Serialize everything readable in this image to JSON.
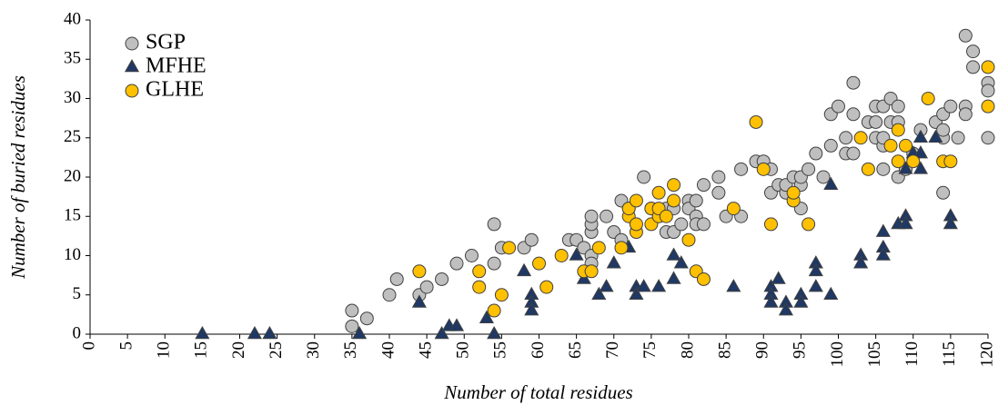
{
  "chart_data": {
    "type": "scatter",
    "x_label": "Number of total residues",
    "y_label": "Number of buried residues",
    "xlim": [
      0,
      120
    ],
    "ylim": [
      0,
      40
    ],
    "xticks": [
      0,
      5,
      10,
      15,
      20,
      25,
      30,
      35,
      40,
      45,
      50,
      55,
      60,
      65,
      70,
      75,
      80,
      85,
      90,
      95,
      100,
      105,
      110,
      115,
      120
    ],
    "yticks": [
      0,
      5,
      10,
      15,
      20,
      25,
      30,
      35,
      40
    ],
    "grid": false,
    "legend": "upper left",
    "series": [
      {
        "name": "SGP",
        "color": "#bfbfbf",
        "marker": "circle",
        "x": [
          35,
          35,
          37,
          40,
          41,
          44,
          45,
          47,
          49,
          51,
          54,
          54,
          55,
          58,
          59,
          64,
          65,
          66,
          67,
          67,
          67,
          67,
          67,
          69,
          70,
          71,
          71,
          72,
          74,
          75,
          76,
          77,
          77,
          78,
          78,
          79,
          80,
          80,
          81,
          81,
          81,
          82,
          82,
          84,
          84,
          85,
          87,
          87,
          89,
          90,
          91,
          91,
          92,
          93,
          93,
          94,
          95,
          95,
          95,
          96,
          97,
          98,
          99,
          99,
          100,
          101,
          101,
          102,
          102,
          102,
          104,
          105,
          105,
          105,
          106,
          106,
          106,
          106,
          107,
          107,
          108,
          108,
          108,
          109,
          110,
          111,
          113,
          114,
          114,
          114,
          114,
          115,
          116,
          117,
          117,
          117,
          118,
          118,
          120,
          120,
          120
        ],
        "values": [
          3,
          1,
          2,
          5,
          7,
          5,
          6,
          7,
          9,
          10,
          9,
          14,
          11,
          11,
          12,
          12,
          12,
          11,
          10,
          9,
          13,
          14,
          15,
          15,
          13,
          17,
          12,
          16,
          20,
          16,
          15,
          16,
          13,
          13,
          16,
          14,
          17,
          16,
          17,
          15,
          14,
          14,
          19,
          18,
          20,
          15,
          15,
          21,
          22,
          22,
          18,
          21,
          19,
          18,
          19,
          20,
          16,
          19,
          20,
          21,
          23,
          20,
          24,
          28,
          29,
          23,
          25,
          28,
          32,
          23,
          27,
          25,
          27,
          29,
          29,
          21,
          24,
          25,
          27,
          30,
          20,
          27,
          29,
          21,
          23,
          26,
          27,
          18,
          25,
          26,
          28,
          29,
          25,
          29,
          28,
          38,
          34,
          36,
          32,
          31,
          25
        ]
      },
      {
        "name": "MFHE",
        "color": "#1f3864",
        "marker": "triangle",
        "x": [
          15,
          22,
          24,
          36,
          44,
          47,
          48,
          49,
          53,
          54,
          58,
          59,
          59,
          59,
          65,
          66,
          68,
          69,
          70,
          72,
          73,
          73,
          74,
          76,
          78,
          78,
          79,
          86,
          91,
          91,
          91,
          92,
          93,
          93,
          95,
          95,
          97,
          97,
          97,
          99,
          99,
          103,
          103,
          106,
          106,
          106,
          108,
          109,
          109,
          109,
          110,
          110,
          111,
          111,
          111,
          113,
          115,
          115
        ],
        "values": [
          0,
          0,
          0,
          0,
          4,
          0,
          1,
          1,
          2,
          0,
          8,
          5,
          4,
          3,
          10,
          7,
          5,
          6,
          9,
          11,
          6,
          5,
          6,
          6,
          10,
          7,
          9,
          6,
          6,
          5,
          4,
          7,
          4,
          3,
          5,
          4,
          9,
          8,
          6,
          5,
          19,
          10,
          9,
          13,
          11,
          10,
          14,
          15,
          14,
          21,
          22,
          23,
          25,
          23,
          21,
          25,
          15,
          14
        ]
      },
      {
        "name": "GLHE",
        "color": "#ffc000",
        "marker": "circle",
        "x": [
          44,
          52,
          52,
          54,
          55,
          56,
          60,
          61,
          63,
          66,
          67,
          68,
          71,
          72,
          72,
          73,
          73,
          73,
          75,
          75,
          76,
          76,
          76,
          77,
          78,
          78,
          80,
          81,
          82,
          86,
          89,
          90,
          91,
          94,
          94,
          96,
          103,
          104,
          107,
          108,
          108,
          109,
          110,
          112,
          114,
          115,
          120,
          120
        ],
        "values": [
          8,
          8,
          6,
          3,
          5,
          11,
          9,
          6,
          10,
          8,
          8,
          11,
          11,
          15,
          16,
          13,
          14,
          17,
          14,
          16,
          18,
          15,
          16,
          15,
          17,
          19,
          12,
          8,
          7,
          16,
          27,
          21,
          14,
          17,
          18,
          14,
          25,
          21,
          24,
          22,
          26,
          24,
          22,
          30,
          22,
          22,
          34,
          29
        ]
      }
    ]
  }
}
